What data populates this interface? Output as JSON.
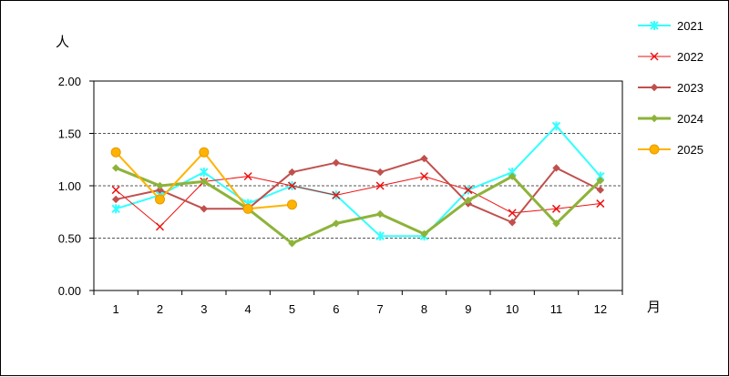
{
  "chart_data": {
    "type": "line",
    "title": "",
    "ylabel": "人",
    "xlabel": "月",
    "ylim": [
      0,
      2
    ],
    "y_ticks": [
      "0.00",
      "0.50",
      "1.00",
      "1.50",
      "2.00"
    ],
    "categories": [
      "1",
      "2",
      "3",
      "4",
      "5",
      "6",
      "7",
      "8",
      "9",
      "10",
      "11",
      "12"
    ],
    "grid": "horizontal dashed",
    "legend_position": "right",
    "series": [
      {
        "name": "2021",
        "color": "#33FFFF",
        "marker": "asterisk",
        "width": "medium",
        "values": [
          0.78,
          0.91,
          1.13,
          0.83,
          1.0,
          0.91,
          0.52,
          0.52,
          0.96,
          1.13,
          1.57,
          1.09
        ]
      },
      {
        "name": "2022",
        "color": "#EE1111",
        "marker": "x",
        "width": "thin",
        "values": [
          0.96,
          0.61,
          1.04,
          1.09,
          1.0,
          0.91,
          1.0,
          1.09,
          0.96,
          0.74,
          0.78,
          0.83
        ]
      },
      {
        "name": "2023",
        "color": "#C0504D",
        "marker": "diamond",
        "width": "medium",
        "values": [
          0.87,
          0.96,
          0.78,
          0.78,
          1.13,
          1.22,
          1.13,
          1.26,
          0.83,
          0.65,
          1.17,
          0.96
        ]
      },
      {
        "name": "2024",
        "color": "#8DB33A",
        "marker": "diamond",
        "width": "thick",
        "values": [
          1.17,
          1.0,
          1.04,
          0.78,
          0.45,
          0.64,
          0.73,
          0.54,
          0.86,
          1.09,
          0.64,
          1.05
        ]
      },
      {
        "name": "2025",
        "color": "#FFB300",
        "marker": "circle",
        "width": "medium",
        "values": [
          1.32,
          0.87,
          1.32,
          0.78,
          0.82,
          null,
          null,
          null,
          null,
          null,
          null,
          null
        ]
      }
    ]
  }
}
